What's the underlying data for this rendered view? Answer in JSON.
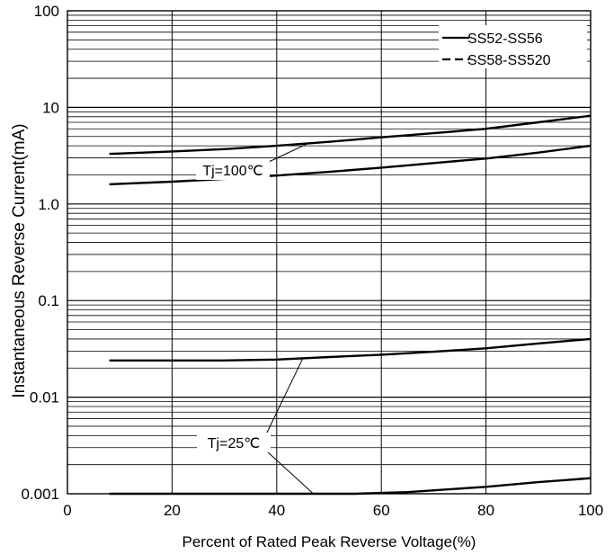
{
  "chart_data": {
    "type": "line",
    "xlabel": "Percent of Rated Peak Reverse Voltage(%)",
    "ylabel": "Instantaneous Reverse Current(mA)",
    "xlim": [
      0,
      100
    ],
    "ylim": [
      0.001,
      100
    ],
    "yscale": "log",
    "grid": true,
    "legend_position": "top-right",
    "x_ticks": [
      "0",
      "20",
      "40",
      "60",
      "80",
      "100"
    ],
    "y_ticks": [
      "0.001",
      "0.01",
      "0.1",
      "1.0",
      "10",
      "100"
    ],
    "legend": [
      {
        "label": "SS52-SS56",
        "style": "solid"
      },
      {
        "label": "SS58-SS520",
        "style": "dashed"
      }
    ],
    "annotations": [
      "Tj=100℃",
      "Tj=25℃"
    ],
    "series": [
      {
        "x": [
          8,
          20,
          30,
          40,
          50,
          60,
          70,
          80,
          90,
          100
        ],
        "y": [
          3.3,
          3.5,
          3.7,
          4.0,
          4.4,
          4.9,
          5.4,
          6.0,
          7.0,
          8.2
        ],
        "style": "solid"
      },
      {
        "x": [
          8,
          20,
          30,
          40,
          50,
          60,
          70,
          80,
          90,
          100
        ],
        "y": [
          1.6,
          1.7,
          1.82,
          1.97,
          2.15,
          2.38,
          2.65,
          2.95,
          3.4,
          4.0
        ],
        "style": "solid"
      },
      {
        "x": [
          8,
          20,
          30,
          40,
          50,
          60,
          70,
          80,
          90,
          100
        ],
        "y": [
          0.024,
          0.024,
          0.024,
          0.0245,
          0.026,
          0.0275,
          0.0295,
          0.032,
          0.036,
          0.04
        ],
        "style": "solid"
      },
      {
        "x": [
          8,
          20,
          30,
          40,
          50,
          55,
          65,
          80,
          90,
          100
        ],
        "y": [
          0.001,
          0.001,
          0.001,
          0.001,
          0.001,
          0.001,
          0.00104,
          0.00118,
          0.00132,
          0.00145
        ],
        "style": "solid"
      }
    ]
  }
}
